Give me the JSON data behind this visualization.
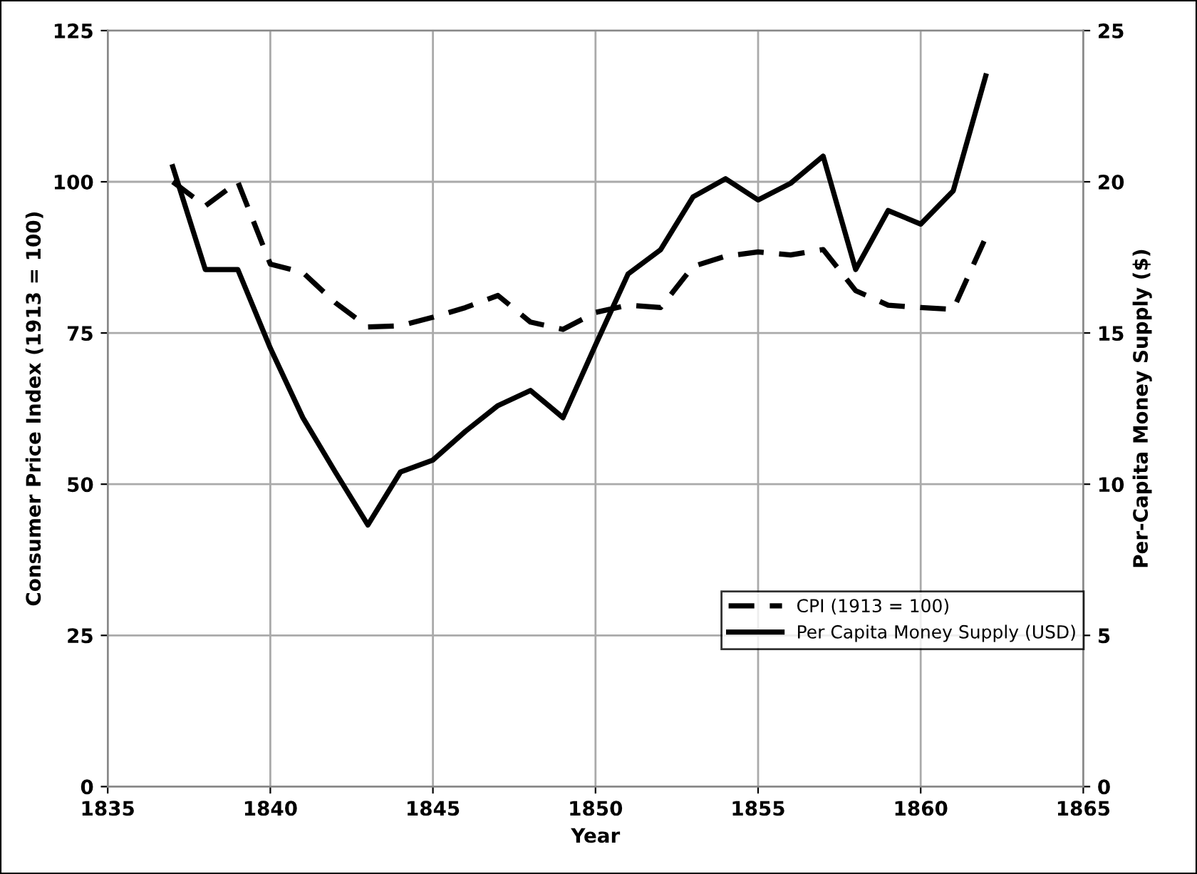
{
  "chart_data": {
    "type": "line",
    "xlabel": "Year",
    "ylabel": "Consumer Price Index (1913 = 100)",
    "y2label": "Per-Capita Money Supply ($)",
    "x": [
      1837,
      1838,
      1839,
      1840,
      1841,
      1842,
      1843,
      1844,
      1845,
      1846,
      1847,
      1848,
      1849,
      1850,
      1851,
      1852,
      1853,
      1854,
      1855,
      1856,
      1857,
      1858,
      1859,
      1860,
      1861,
      1862
    ],
    "series": [
      {
        "name": "CPI (1913 = 100)",
        "color": "#000000",
        "line_style": "dashed",
        "values": [
          100,
          96,
          100,
          86.4,
          85,
          80,
          76,
          76.2,
          77.6,
          79.2,
          81.2,
          76.8,
          75.6,
          78.4,
          79.6,
          79.2,
          86,
          87.7,
          88.4,
          87.9,
          88.8,
          82,
          79.6,
          79.2,
          78.9,
          90.8
        ]
      },
      {
        "name": "Per Capita Money Supply (USD)",
        "color": "#000000",
        "line_style": "solid",
        "axis": "y2",
        "values": [
          20.5,
          17.1,
          17.1,
          14.5,
          12.2,
          10.4,
          8.65,
          10.4,
          10.8,
          11.75,
          12.6,
          13.1,
          12.2,
          14.6,
          16.95,
          17.75,
          19.5,
          20.1,
          19.4,
          19.95,
          20.85,
          17.1,
          19.05,
          18.6,
          19.7,
          23.5
        ]
      }
    ],
    "xlim": [
      1835,
      1865
    ],
    "xticks": [
      1835,
      1840,
      1845,
      1850,
      1855,
      1860,
      1865
    ],
    "ylim": [
      0,
      125
    ],
    "yticks": [
      0,
      25,
      50,
      75,
      100,
      125
    ],
    "y2lim": [
      0,
      25
    ],
    "y2ticks": [
      0,
      5,
      10,
      15,
      20,
      25
    ],
    "grid": true,
    "legend": "bottom right",
    "marker": "none"
  }
}
